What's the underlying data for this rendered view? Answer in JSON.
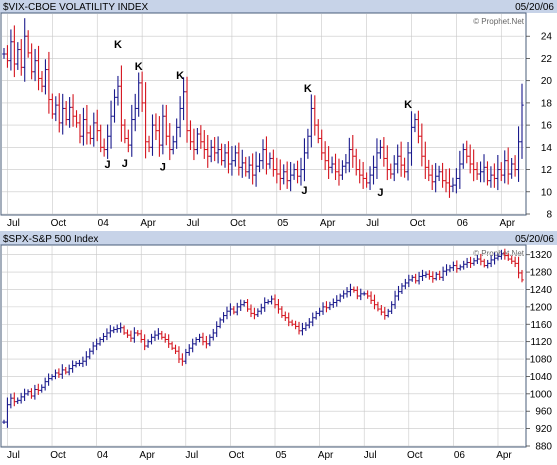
{
  "colors": {
    "up": "#1a1a8c",
    "down": "#d4141e",
    "grid": "#c8c8c8",
    "header_bg": "#c7d3e8",
    "frame": "#4a5c7a",
    "text": "#000000"
  },
  "chart_data": [
    {
      "type": "ohlc",
      "title": "$VIX-CBOE VOLATILITY INDEX",
      "date": "05/20/06",
      "watermark": "© Prophet.Net",
      "ylim": [
        8,
        26
      ],
      "yticks": [
        8,
        10,
        12,
        14,
        16,
        18,
        20,
        22,
        24
      ],
      "xticks": [
        {
          "label": "Jul",
          "week": 1
        },
        {
          "label": "Oct",
          "week": 14
        },
        {
          "label": "04",
          "week": 27
        },
        {
          "label": "Apr",
          "week": 40
        },
        {
          "label": "Jul",
          "week": 53
        },
        {
          "label": "Oct",
          "week": 66
        },
        {
          "label": "05",
          "week": 79
        },
        {
          "label": "Apr",
          "week": 92
        },
        {
          "label": "Jul",
          "week": 105
        },
        {
          "label": "Oct",
          "week": 118
        },
        {
          "label": "06",
          "week": 131
        },
        {
          "label": "Apr",
          "week": 144
        }
      ],
      "closes": [
        22.4,
        21.8,
        23.5,
        21.5,
        22.8,
        21.2,
        24.0,
        22.5,
        20.8,
        21.8,
        20.2,
        19.5,
        21.0,
        18.3,
        17.0,
        17.8,
        16.2,
        17.5,
        16.5,
        17.6,
        16.8,
        16.2,
        15.0,
        16.5,
        15.3,
        14.8,
        16.2,
        15.5,
        14.0,
        13.8,
        15.0,
        16.8,
        18.5,
        19.5,
        16.0,
        14.8,
        14.2,
        16.5,
        17.5,
        19.8,
        18.0,
        14.5,
        14.0,
        16.0,
        15.5,
        14.2,
        16.8,
        15.0,
        13.8,
        14.5,
        15.8,
        17.5,
        19.0,
        15.5,
        14.5,
        13.8,
        15.2,
        14.5,
        13.8,
        13.2,
        14.0,
        13.5,
        13.8,
        12.8,
        13.5,
        12.5,
        12.8,
        13.5,
        12.2,
        12.6,
        11.8,
        12.4,
        11.5,
        12.3,
        12.8,
        13.8,
        12.5,
        13.0,
        12.0,
        11.6,
        11.2,
        11.8,
        11.0,
        11.5,
        12.0,
        11.4,
        12.0,
        13.5,
        15.0,
        17.5,
        16.0,
        14.8,
        13.5,
        12.8,
        12.2,
        12.5,
        11.8,
        11.5,
        12.3,
        12.6,
        13.8,
        13.2,
        12.0,
        11.5,
        11.2,
        10.8,
        11.5,
        12.2,
        13.5,
        14.0,
        13.0,
        12.0,
        11.6,
        12.5,
        13.2,
        12.4,
        11.8,
        13.5,
        15.8,
        16.5,
        15.0,
        13.2,
        12.2,
        11.5,
        10.9,
        11.4,
        11.8,
        11.0,
        10.8,
        10.5,
        10.6,
        11.2,
        12.5,
        13.8,
        13.2,
        12.5,
        12.0,
        11.6,
        11.8,
        12.2,
        11.0,
        11.5,
        11.2,
        12.0,
        11.5,
        12.8,
        11.6,
        12.5,
        12.0,
        14.5,
        17.8
      ],
      "peak_labels": [
        {
          "text": "K",
          "week": 33,
          "value": 22.6
        },
        {
          "text": "K",
          "week": 39,
          "value": 20.6
        },
        {
          "text": "K",
          "week": 51,
          "value": 19.8
        },
        {
          "text": "K",
          "week": 88,
          "value": 18.6
        },
        {
          "text": "K",
          "week": 117,
          "value": 17.2
        }
      ],
      "trough_labels": [
        {
          "text": "J",
          "week": 30,
          "value": 13.2
        },
        {
          "text": "J",
          "week": 35,
          "value": 13.3
        },
        {
          "text": "J",
          "week": 46,
          "value": 13.0
        },
        {
          "text": "J",
          "week": 87,
          "value": 10.9
        },
        {
          "text": "J",
          "week": 109,
          "value": 10.7
        }
      ]
    },
    {
      "type": "ohlc",
      "title": "$SPX-S&P 500 Index",
      "date": "05/20/06",
      "watermark": "© Prophet.Net",
      "ylim": [
        880,
        1340
      ],
      "yticks": [
        880,
        920,
        960,
        1000,
        1040,
        1080,
        1120,
        1160,
        1200,
        1240,
        1280,
        1320
      ],
      "xticks": [
        {
          "label": "Jul",
          "week": 1
        },
        {
          "label": "Oct",
          "week": 14
        },
        {
          "label": "04",
          "week": 27
        },
        {
          "label": "Apr",
          "week": 40
        },
        {
          "label": "Jul",
          "week": 53
        },
        {
          "label": "Oct",
          "week": 66
        },
        {
          "label": "05",
          "week": 79
        },
        {
          "label": "Apr",
          "week": 92
        },
        {
          "label": "Jul",
          "week": 105
        },
        {
          "label": "Oct",
          "week": 118
        },
        {
          "label": "06",
          "week": 131
        },
        {
          "label": "Apr",
          "week": 144
        }
      ],
      "closes": [
        935,
        975,
        990,
        982,
        985,
        993,
        1000,
        1005,
        995,
        1010,
        1008,
        1015,
        1028,
        1035,
        1040,
        1048,
        1045,
        1055,
        1050,
        1058,
        1065,
        1070,
        1070,
        1075,
        1085,
        1098,
        1110,
        1115,
        1125,
        1132,
        1140,
        1145,
        1148,
        1150,
        1152,
        1140,
        1135,
        1128,
        1140,
        1138,
        1125,
        1110,
        1120,
        1130,
        1135,
        1138,
        1130,
        1125,
        1115,
        1105,
        1098,
        1080,
        1075,
        1095,
        1105,
        1115,
        1125,
        1130,
        1120,
        1115,
        1130,
        1140,
        1155,
        1170,
        1180,
        1190,
        1195,
        1188,
        1200,
        1205,
        1210,
        1195,
        1185,
        1182,
        1190,
        1198,
        1210,
        1212,
        1218,
        1205,
        1195,
        1180,
        1175,
        1165,
        1160,
        1155,
        1145,
        1150,
        1158,
        1165,
        1175,
        1185,
        1190,
        1200,
        1198,
        1205,
        1210,
        1215,
        1225,
        1230,
        1235,
        1240,
        1238,
        1225,
        1230,
        1230,
        1225,
        1215,
        1205,
        1195,
        1188,
        1180,
        1190,
        1205,
        1225,
        1235,
        1248,
        1255,
        1262,
        1268,
        1260,
        1270,
        1272,
        1275,
        1270,
        1265,
        1275,
        1268,
        1282,
        1285,
        1290,
        1295,
        1288,
        1292,
        1298,
        1302,
        1300,
        1306,
        1310,
        1305,
        1295,
        1300,
        1308,
        1312,
        1316,
        1322,
        1318,
        1310,
        1305,
        1300,
        1278,
        1262
      ]
    }
  ]
}
